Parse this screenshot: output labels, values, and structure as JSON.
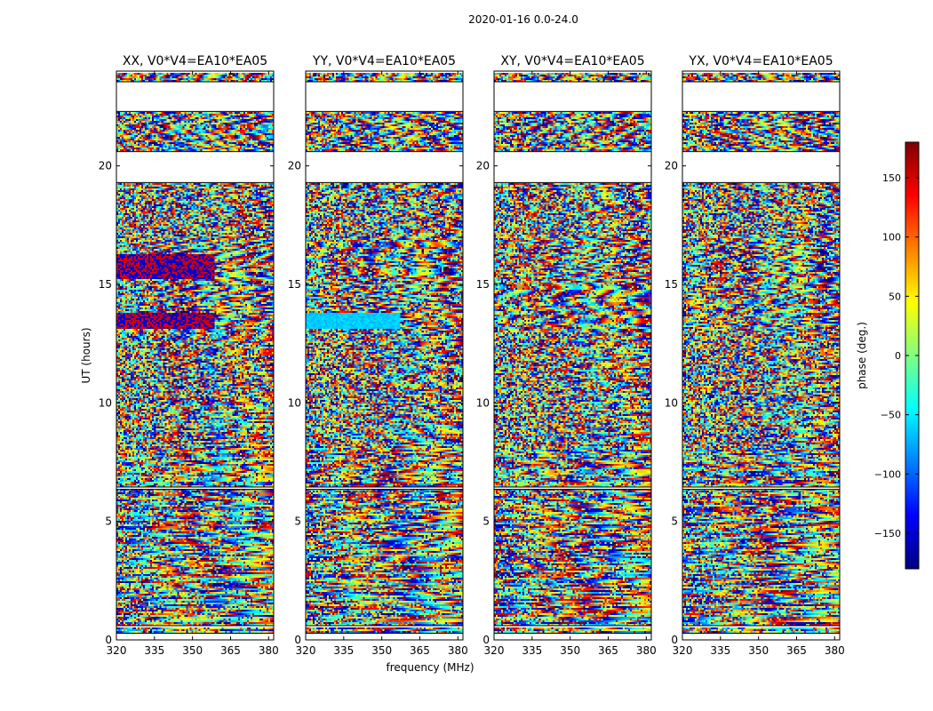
{
  "chart_data": {
    "type": "heatmap",
    "suptitle": "2020-01-16 0.0-24.0",
    "xlabel": "frequency (MHz)",
    "ylabel": "UT (hours)",
    "xlim": [
      320,
      382
    ],
    "ylim": [
      0,
      24
    ],
    "xticks": [
      "320",
      "335",
      "350",
      "365",
      "380"
    ],
    "yticks": [
      "0",
      "5",
      "10",
      "15",
      "20"
    ],
    "panels": [
      {
        "title": "XX, V0*V4=EA10*EA05",
        "pol": "XX"
      },
      {
        "title": "YY, V0*V4=EA10*EA05",
        "pol": "YY"
      },
      {
        "title": "XY, V0*V4=EA10*EA05",
        "pol": "XY"
      },
      {
        "title": "YX, V0*V4=EA10*EA05",
        "pol": "YX"
      }
    ],
    "colorbar": {
      "label": "phase (deg.)",
      "range": [
        -180,
        180
      ],
      "ticks": [
        "150",
        "100",
        "50",
        "0",
        "−50",
        "−100",
        "−150"
      ],
      "colormap": "jet"
    },
    "data_gaps_hours": [
      [
        0.03,
        0.28
      ],
      [
        0.55,
        0.6
      ],
      [
        6.35,
        6.45
      ],
      [
        19.3,
        20.6
      ],
      [
        22.3,
        23.55
      ],
      [
        23.9,
        24.0
      ]
    ]
  }
}
